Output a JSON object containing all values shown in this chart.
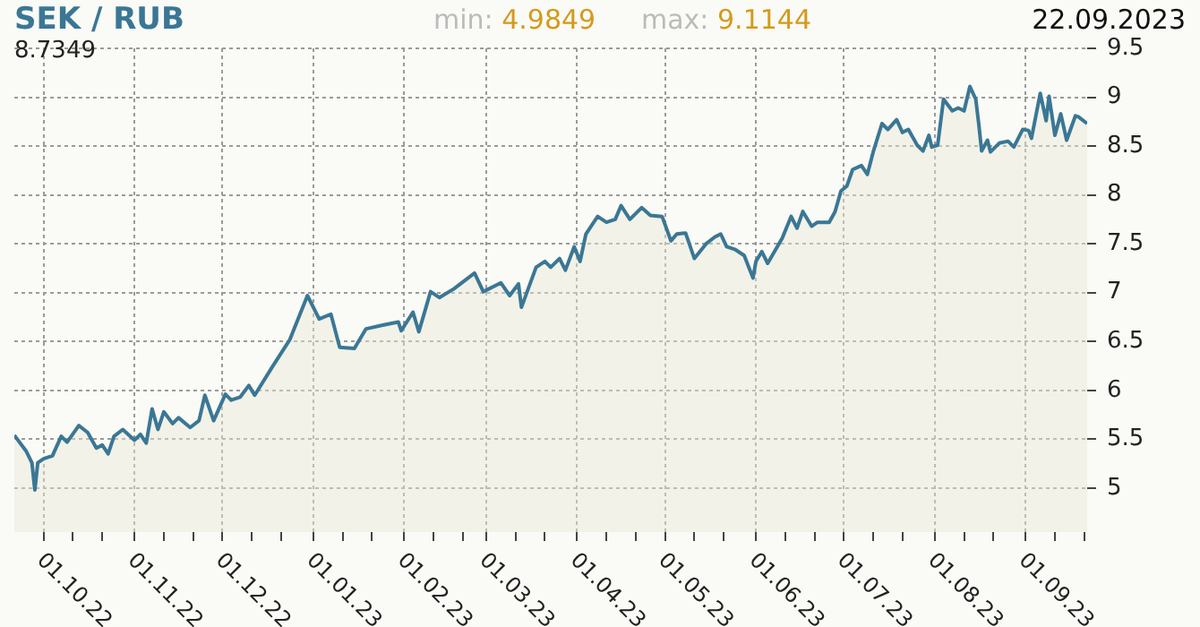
{
  "chart_data": {
    "type": "area",
    "title": "SEK / RUB",
    "annotations": [
      "8.7349",
      "min: 4.9849",
      "max: 9.1144",
      "22.09.2023"
    ],
    "x": [
      "2022-09-21",
      "2022-09-25",
      "2022-09-27",
      "2022-09-28",
      "2022-09-29",
      "2022-10-01",
      "2022-10-04",
      "2022-10-07",
      "2022-10-09",
      "2022-10-13",
      "2022-10-16",
      "2022-10-19",
      "2022-10-21",
      "2022-10-23",
      "2022-10-25",
      "2022-10-28",
      "2022-11-01",
      "2022-11-03",
      "2022-11-05",
      "2022-11-07",
      "2022-11-09",
      "2022-11-11",
      "2022-11-14",
      "2022-11-16",
      "2022-11-20",
      "2022-11-23",
      "2022-11-25",
      "2022-11-28",
      "2022-12-02",
      "2022-12-04",
      "2022-12-07",
      "2022-12-10",
      "2022-12-12",
      "2022-12-18",
      "2022-12-24",
      "2022-12-30",
      "2023-01-03",
      "2023-01-07",
      "2023-01-10",
      "2023-01-15",
      "2023-01-19",
      "2023-01-25",
      "2023-01-30",
      "2023-01-31",
      "2023-02-04",
      "2023-02-06",
      "2023-02-10",
      "2023-02-13",
      "2023-02-18",
      "2023-02-25",
      "2023-02-28",
      "2023-03-06",
      "2023-03-09",
      "2023-03-12",
      "2023-03-13",
      "2023-03-18",
      "2023-03-21",
      "2023-03-23",
      "2023-03-26",
      "2023-03-28",
      "2023-03-31",
      "2023-04-02",
      "2023-04-04",
      "2023-04-08",
      "2023-04-11",
      "2023-04-14",
      "2023-04-16",
      "2023-04-19",
      "2023-04-23",
      "2023-04-26",
      "2023-04-30",
      "2023-05-03",
      "2023-05-05",
      "2023-05-08",
      "2023-05-11",
      "2023-05-15",
      "2023-05-18",
      "2023-05-20",
      "2023-05-22",
      "2023-05-25",
      "2023-05-28",
      "2023-05-31",
      "2023-06-01",
      "2023-06-03",
      "2023-06-05",
      "2023-06-10",
      "2023-06-13",
      "2023-06-15",
      "2023-06-17",
      "2023-06-20",
      "2023-06-22",
      "2023-06-26",
      "2023-06-28",
      "2023-06-30",
      "2023-07-02",
      "2023-07-04",
      "2023-07-07",
      "2023-07-09",
      "2023-07-11",
      "2023-07-14",
      "2023-07-16",
      "2023-07-19",
      "2023-07-21",
      "2023-07-23",
      "2023-07-26",
      "2023-07-28",
      "2023-07-30",
      "2023-07-31",
      "2023-08-02",
      "2023-08-04",
      "2023-08-07",
      "2023-08-09",
      "2023-08-11",
      "2023-08-13",
      "2023-08-15",
      "2023-08-16",
      "2023-08-17",
      "2023-08-19",
      "2023-08-20",
      "2023-08-23",
      "2023-08-26",
      "2023-08-28",
      "2023-08-31",
      "2023-09-02",
      "2023-09-03",
      "2023-09-06",
      "2023-09-08",
      "2023-09-09",
      "2023-09-11",
      "2023-09-13",
      "2023-09-15",
      "2023-09-18",
      "2023-09-19",
      "2023-09-22"
    ],
    "series": [
      {
        "color": "#3a7795",
        "values": [
          5.54,
          5.38,
          5.26,
          4.98,
          5.26,
          5.3,
          5.33,
          5.53,
          5.47,
          5.64,
          5.57,
          5.41,
          5.44,
          5.35,
          5.53,
          5.6,
          5.49,
          5.55,
          5.46,
          5.81,
          5.6,
          5.78,
          5.66,
          5.72,
          5.62,
          5.69,
          5.95,
          5.69,
          5.96,
          5.9,
          5.93,
          6.05,
          5.95,
          6.24,
          6.52,
          6.97,
          6.73,
          6.78,
          6.44,
          6.43,
          6.63,
          6.67,
          6.7,
          6.61,
          6.8,
          6.6,
          7.01,
          6.95,
          7.04,
          7.2,
          7.01,
          7.1,
          6.97,
          7.09,
          6.85,
          7.26,
          7.32,
          7.26,
          7.35,
          7.23,
          7.47,
          7.32,
          7.6,
          7.78,
          7.72,
          7.75,
          7.89,
          7.75,
          7.87,
          7.79,
          7.78,
          7.53,
          7.6,
          7.61,
          7.35,
          7.5,
          7.57,
          7.6,
          7.47,
          7.44,
          7.38,
          7.15,
          7.32,
          7.42,
          7.3,
          7.56,
          7.78,
          7.66,
          7.83,
          7.68,
          7.72,
          7.72,
          7.83,
          8.04,
          8.09,
          8.26,
          8.3,
          8.21,
          8.44,
          8.73,
          8.67,
          8.77,
          8.64,
          8.67,
          8.51,
          8.45,
          8.61,
          8.49,
          8.51,
          8.98,
          8.86,
          8.89,
          8.86,
          9.11,
          8.98,
          8.73,
          8.45,
          8.56,
          8.44,
          8.53,
          8.55,
          8.49,
          8.67,
          8.66,
          8.58,
          9.04,
          8.76,
          9.01,
          8.61,
          8.83,
          8.56,
          8.81,
          8.8,
          8.73
        ]
      }
    ],
    "xlim": [
      "2022-09-21",
      "2023-09-22"
    ],
    "xticks": [
      {
        "value": "2022-10-01",
        "label": "01.10.22"
      },
      {
        "value": "2022-10-11",
        "label": null
      },
      {
        "value": "2022-10-21",
        "label": null
      },
      {
        "value": "2022-11-01",
        "label": "01.11.22"
      },
      {
        "value": "2022-11-11",
        "label": null
      },
      {
        "value": "2022-11-21",
        "label": null
      },
      {
        "value": "2022-12-01",
        "label": "01.12.22"
      },
      {
        "value": "2022-12-11",
        "label": null
      },
      {
        "value": "2022-12-21",
        "label": null
      },
      {
        "value": "2023-01-01",
        "label": "01.01.23"
      },
      {
        "value": "2023-01-11",
        "label": null
      },
      {
        "value": "2023-01-21",
        "label": null
      },
      {
        "value": "2023-02-01",
        "label": "01.02.23"
      },
      {
        "value": "2023-02-11",
        "label": null
      },
      {
        "value": "2023-02-21",
        "label": null
      },
      {
        "value": "2023-03-01",
        "label": "01.03.23"
      },
      {
        "value": "2023-03-11",
        "label": null
      },
      {
        "value": "2023-03-21",
        "label": null
      },
      {
        "value": "2023-04-01",
        "label": "01.04.23"
      },
      {
        "value": "2023-04-11",
        "label": null
      },
      {
        "value": "2023-04-21",
        "label": null
      },
      {
        "value": "2023-05-01",
        "label": "01.05.23"
      },
      {
        "value": "2023-05-11",
        "label": null
      },
      {
        "value": "2023-05-21",
        "label": null
      },
      {
        "value": "2023-06-01",
        "label": "01.06.23"
      },
      {
        "value": "2023-06-11",
        "label": null
      },
      {
        "value": "2023-06-21",
        "label": null
      },
      {
        "value": "2023-07-01",
        "label": "01.07.23"
      },
      {
        "value": "2023-07-11",
        "label": null
      },
      {
        "value": "2023-07-21",
        "label": null
      },
      {
        "value": "2023-08-01",
        "label": "01.08.23"
      },
      {
        "value": "2023-08-11",
        "label": null
      },
      {
        "value": "2023-08-21",
        "label": null
      },
      {
        "value": "2023-09-01",
        "label": "01.09.23"
      },
      {
        "value": "2023-09-11",
        "label": null
      },
      {
        "value": "2023-09-21",
        "label": null
      }
    ],
    "ylim": [
      4.55,
      9.5
    ],
    "yticks": [
      5,
      5.5,
      6,
      6.5,
      7,
      7.5,
      8,
      8.5,
      9,
      9.5
    ],
    "grid": true,
    "legend": false,
    "marker": "none",
    "line_style": "solid"
  }
}
